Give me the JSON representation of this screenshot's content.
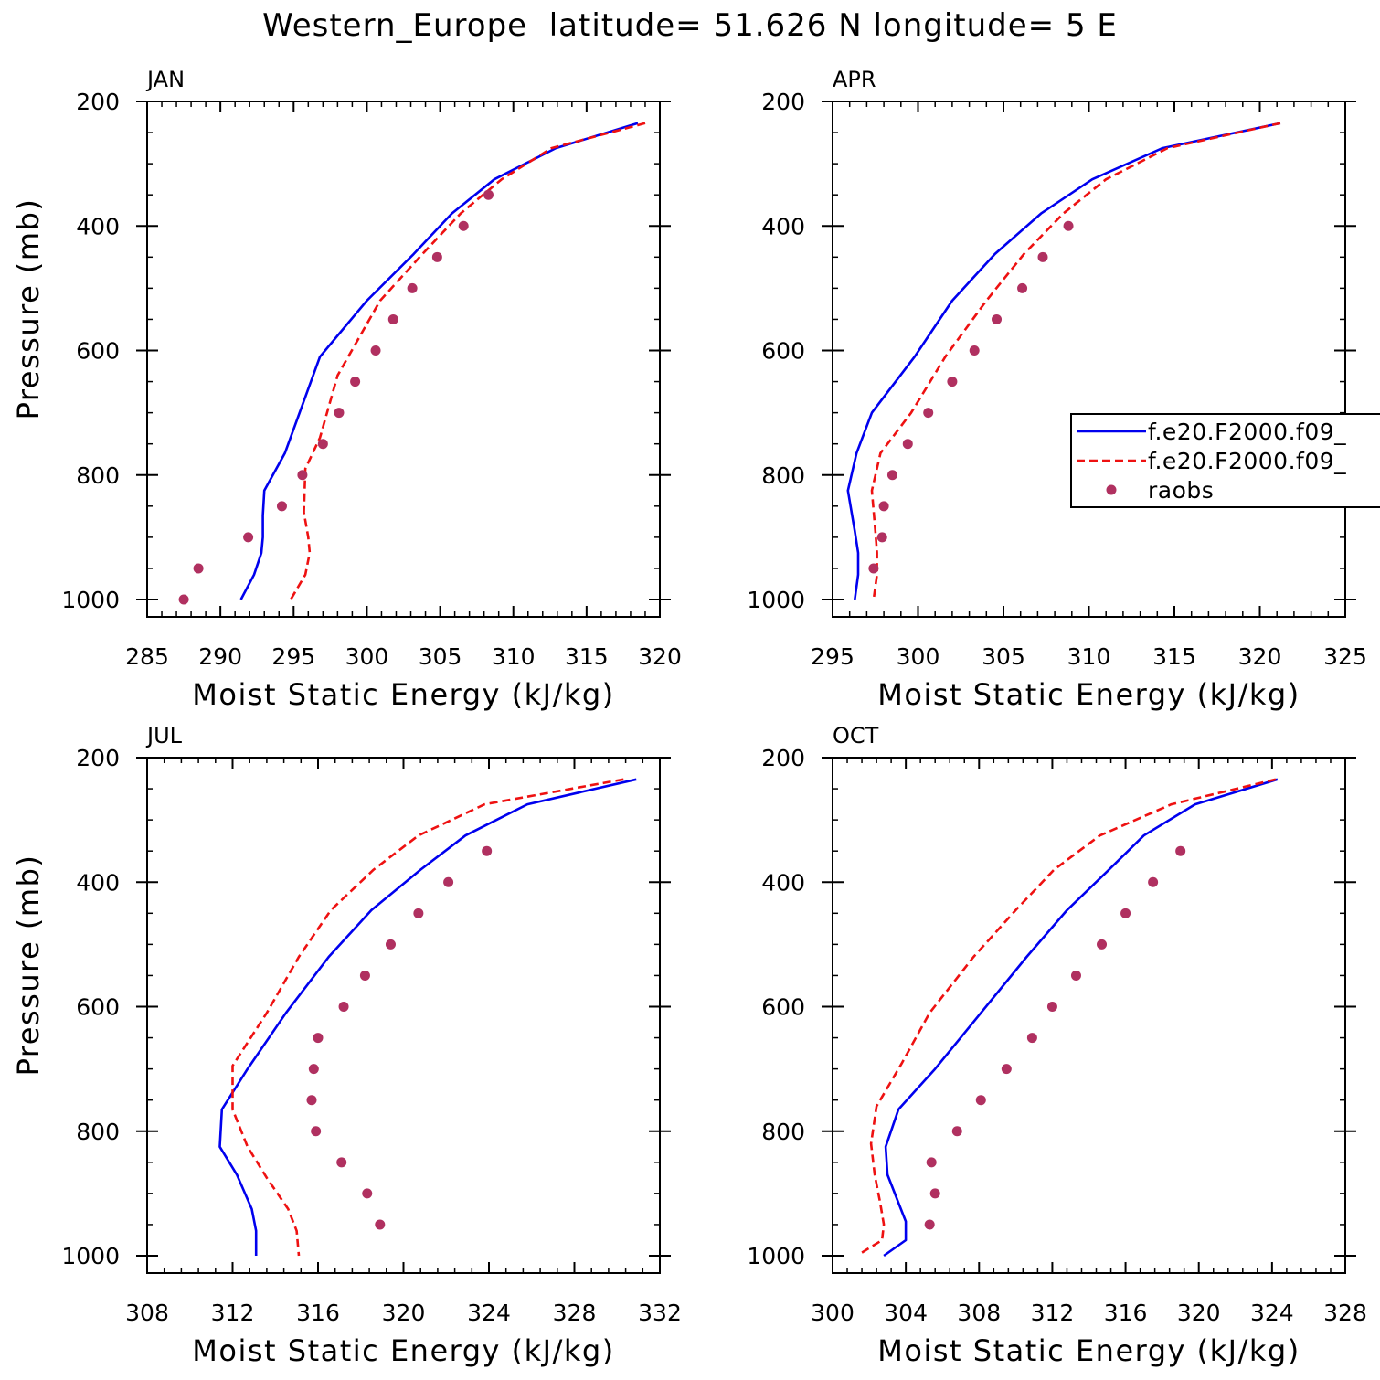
{
  "page": {
    "title": "Western_Europe  latitude= 51.626 N longitude= 5 E"
  },
  "legend": {
    "entries": [
      {
        "label": "f.e20.F2000.f09_",
        "style": "solid",
        "color": "#0000ee"
      },
      {
        "label": "f.e20.F2000.f09_",
        "style": "dashed",
        "color": "#ee1111"
      },
      {
        "label": "raobs",
        "style": "dot",
        "color": "#b03060"
      }
    ]
  },
  "chart_data": [
    {
      "type": "line",
      "title": "JAN",
      "xlabel": "Moist Static Energy (kJ/kg)",
      "ylabel": "Pressure (mb)",
      "xlim": [
        285,
        320
      ],
      "ylim": [
        1000,
        200
      ],
      "xticks": [
        285,
        290,
        295,
        300,
        305,
        310,
        315,
        320
      ],
      "xtick_labels": [
        "285",
        "290",
        "295",
        "300",
        "305",
        "310",
        "315",
        "320"
      ],
      "yticks": [
        200,
        400,
        600,
        800,
        1000
      ],
      "ytick_labels": [
        "200",
        "400",
        "600",
        "800",
        "1000"
      ],
      "series": [
        {
          "style": "solid",
          "color": "#0000ee",
          "x": [
            318.5,
            312.9,
            308.7,
            305.8,
            303.2,
            300.0,
            296.8,
            294.4,
            293.0,
            292.9,
            292.9,
            292.8,
            292.3,
            291.4
          ],
          "y": [
            235,
            275,
            325,
            380,
            445,
            520,
            610,
            765,
            825,
            865,
            900,
            925,
            960,
            1000
          ]
        },
        {
          "style": "dashed",
          "color": "#ee1111",
          "x": [
            319.0,
            312.6,
            309.2,
            306.4,
            303.8,
            300.9,
            298.0,
            296.8,
            295.8,
            295.7,
            296.0,
            296.1,
            295.8,
            294.8
          ],
          "y": [
            235,
            275,
            325,
            380,
            445,
            520,
            640,
            740,
            790,
            860,
            900,
            925,
            960,
            1000
          ]
        },
        {
          "style": "dot",
          "color": "#b03060",
          "x": [
            308.3,
            306.6,
            304.8,
            303.1,
            301.8,
            300.6,
            299.2,
            298.1,
            297.0,
            295.6,
            294.2,
            291.9,
            288.5,
            287.5
          ],
          "y": [
            350,
            400,
            450,
            500,
            550,
            600,
            650,
            700,
            750,
            800,
            850,
            900,
            950,
            1000
          ]
        }
      ]
    },
    {
      "type": "line",
      "title": "APR",
      "xlabel": "Moist Static Energy (kJ/kg)",
      "ylabel": "",
      "xlim": [
        295,
        325
      ],
      "ylim": [
        1000,
        200
      ],
      "xticks": [
        295,
        300,
        305,
        310,
        315,
        320,
        325
      ],
      "xtick_labels": [
        "295",
        "300",
        "305",
        "310",
        "315",
        "320",
        "325"
      ],
      "yticks": [
        200,
        400,
        600,
        800,
        1000
      ],
      "ytick_labels": [
        "200",
        "400",
        "600",
        "800",
        "1000"
      ],
      "legend_position": "right",
      "series": [
        {
          "style": "solid",
          "color": "#0000ee",
          "x": [
            321.2,
            314.3,
            310.2,
            307.2,
            304.5,
            302.0,
            299.8,
            297.3,
            296.4,
            295.9,
            296.3,
            296.5,
            296.5,
            296.3
          ],
          "y": [
            235,
            275,
            325,
            380,
            445,
            520,
            610,
            700,
            765,
            825,
            890,
            925,
            960,
            1000
          ]
        },
        {
          "style": "dashed",
          "color": "#ee1111",
          "x": [
            321.2,
            314.6,
            311.0,
            308.5,
            306.2,
            304.0,
            301.6,
            299.6,
            297.8,
            297.3,
            297.5,
            297.6,
            297.6,
            297.4
          ],
          "y": [
            235,
            275,
            325,
            380,
            445,
            520,
            610,
            700,
            765,
            825,
            890,
            925,
            960,
            1000
          ]
        },
        {
          "style": "dot",
          "color": "#b03060",
          "x": [
            308.8,
            307.3,
            306.1,
            304.6,
            303.3,
            302.0,
            300.6,
            299.4,
            298.5,
            298.0,
            297.9,
            297.4
          ],
          "y": [
            400,
            450,
            500,
            550,
            600,
            650,
            700,
            750,
            800,
            850,
            900,
            950
          ]
        }
      ]
    },
    {
      "type": "line",
      "title": "JUL",
      "xlabel": "Moist Static Energy (kJ/kg)",
      "ylabel": "Pressure (mb)",
      "xlim": [
        308,
        332
      ],
      "ylim": [
        1000,
        200
      ],
      "xticks": [
        308,
        312,
        316,
        320,
        324,
        328,
        332
      ],
      "xtick_labels": [
        "308",
        "312",
        "316",
        "320",
        "324",
        "328",
        "332"
      ],
      "yticks": [
        200,
        400,
        600,
        800,
        1000
      ],
      "ytick_labels": [
        "200",
        "400",
        "600",
        "800",
        "1000"
      ],
      "series": [
        {
          "style": "solid",
          "color": "#0000ee",
          "x": [
            330.9,
            325.8,
            322.9,
            320.8,
            318.5,
            316.5,
            314.5,
            312.7,
            311.5,
            311.4,
            312.2,
            312.9,
            313.1,
            313.1
          ],
          "y": [
            235,
            275,
            325,
            380,
            445,
            520,
            610,
            700,
            765,
            825,
            870,
            925,
            960,
            1000
          ]
        },
        {
          "style": "dashed",
          "color": "#ee1111",
          "x": [
            330.3,
            323.8,
            320.7,
            318.6,
            316.6,
            315.1,
            313.6,
            312.0,
            312.0,
            312.7,
            313.6,
            314.6,
            315.0,
            315.1
          ],
          "y": [
            235,
            275,
            325,
            380,
            445,
            520,
            610,
            695,
            765,
            825,
            875,
            925,
            960,
            1000
          ]
        },
        {
          "style": "dot",
          "color": "#b03060",
          "x": [
            323.9,
            322.1,
            320.7,
            319.4,
            318.2,
            317.2,
            316.0,
            315.8,
            315.7,
            315.9,
            317.1,
            318.3,
            318.9
          ],
          "y": [
            350,
            400,
            450,
            500,
            550,
            600,
            650,
            700,
            750,
            800,
            850,
            900,
            950
          ]
        }
      ]
    },
    {
      "type": "line",
      "title": "OCT",
      "xlabel": "Moist Static Energy (kJ/kg)",
      "ylabel": "",
      "xlim": [
        300,
        328
      ],
      "ylim": [
        1000,
        200
      ],
      "xticks": [
        300,
        304,
        308,
        312,
        316,
        320,
        324,
        328
      ],
      "xtick_labels": [
        "300",
        "304",
        "308",
        "312",
        "316",
        "320",
        "324",
        "328"
      ],
      "yticks": [
        200,
        400,
        600,
        800,
        1000
      ],
      "ytick_labels": [
        "200",
        "400",
        "600",
        "800",
        "1000"
      ],
      "series": [
        {
          "style": "solid",
          "color": "#0000ee",
          "x": [
            324.3,
            319.8,
            317.0,
            315.1,
            312.8,
            310.6,
            308.1,
            305.6,
            303.6,
            302.9,
            303.0,
            303.6,
            304.0,
            304.0,
            302.8
          ],
          "y": [
            235,
            275,
            325,
            380,
            445,
            520,
            610,
            700,
            765,
            825,
            870,
            915,
            945,
            975,
            1000
          ]
        },
        {
          "style": "dashed",
          "color": "#ee1111",
          "x": [
            324.2,
            318.5,
            314.6,
            312.1,
            310.0,
            307.7,
            305.3,
            303.8,
            302.4,
            302.1,
            302.3,
            302.6,
            302.8,
            302.7,
            301.6
          ],
          "y": [
            235,
            275,
            325,
            380,
            445,
            520,
            610,
            690,
            760,
            820,
            870,
            915,
            950,
            975,
            995
          ]
        },
        {
          "style": "dot",
          "color": "#b03060",
          "x": [
            319.0,
            317.5,
            316.0,
            314.7,
            313.3,
            312.0,
            310.9,
            309.5,
            308.1,
            306.8,
            305.4,
            305.6,
            305.3
          ],
          "y": [
            350,
            400,
            450,
            500,
            550,
            600,
            650,
            700,
            750,
            800,
            850,
            900,
            950
          ]
        }
      ]
    }
  ]
}
